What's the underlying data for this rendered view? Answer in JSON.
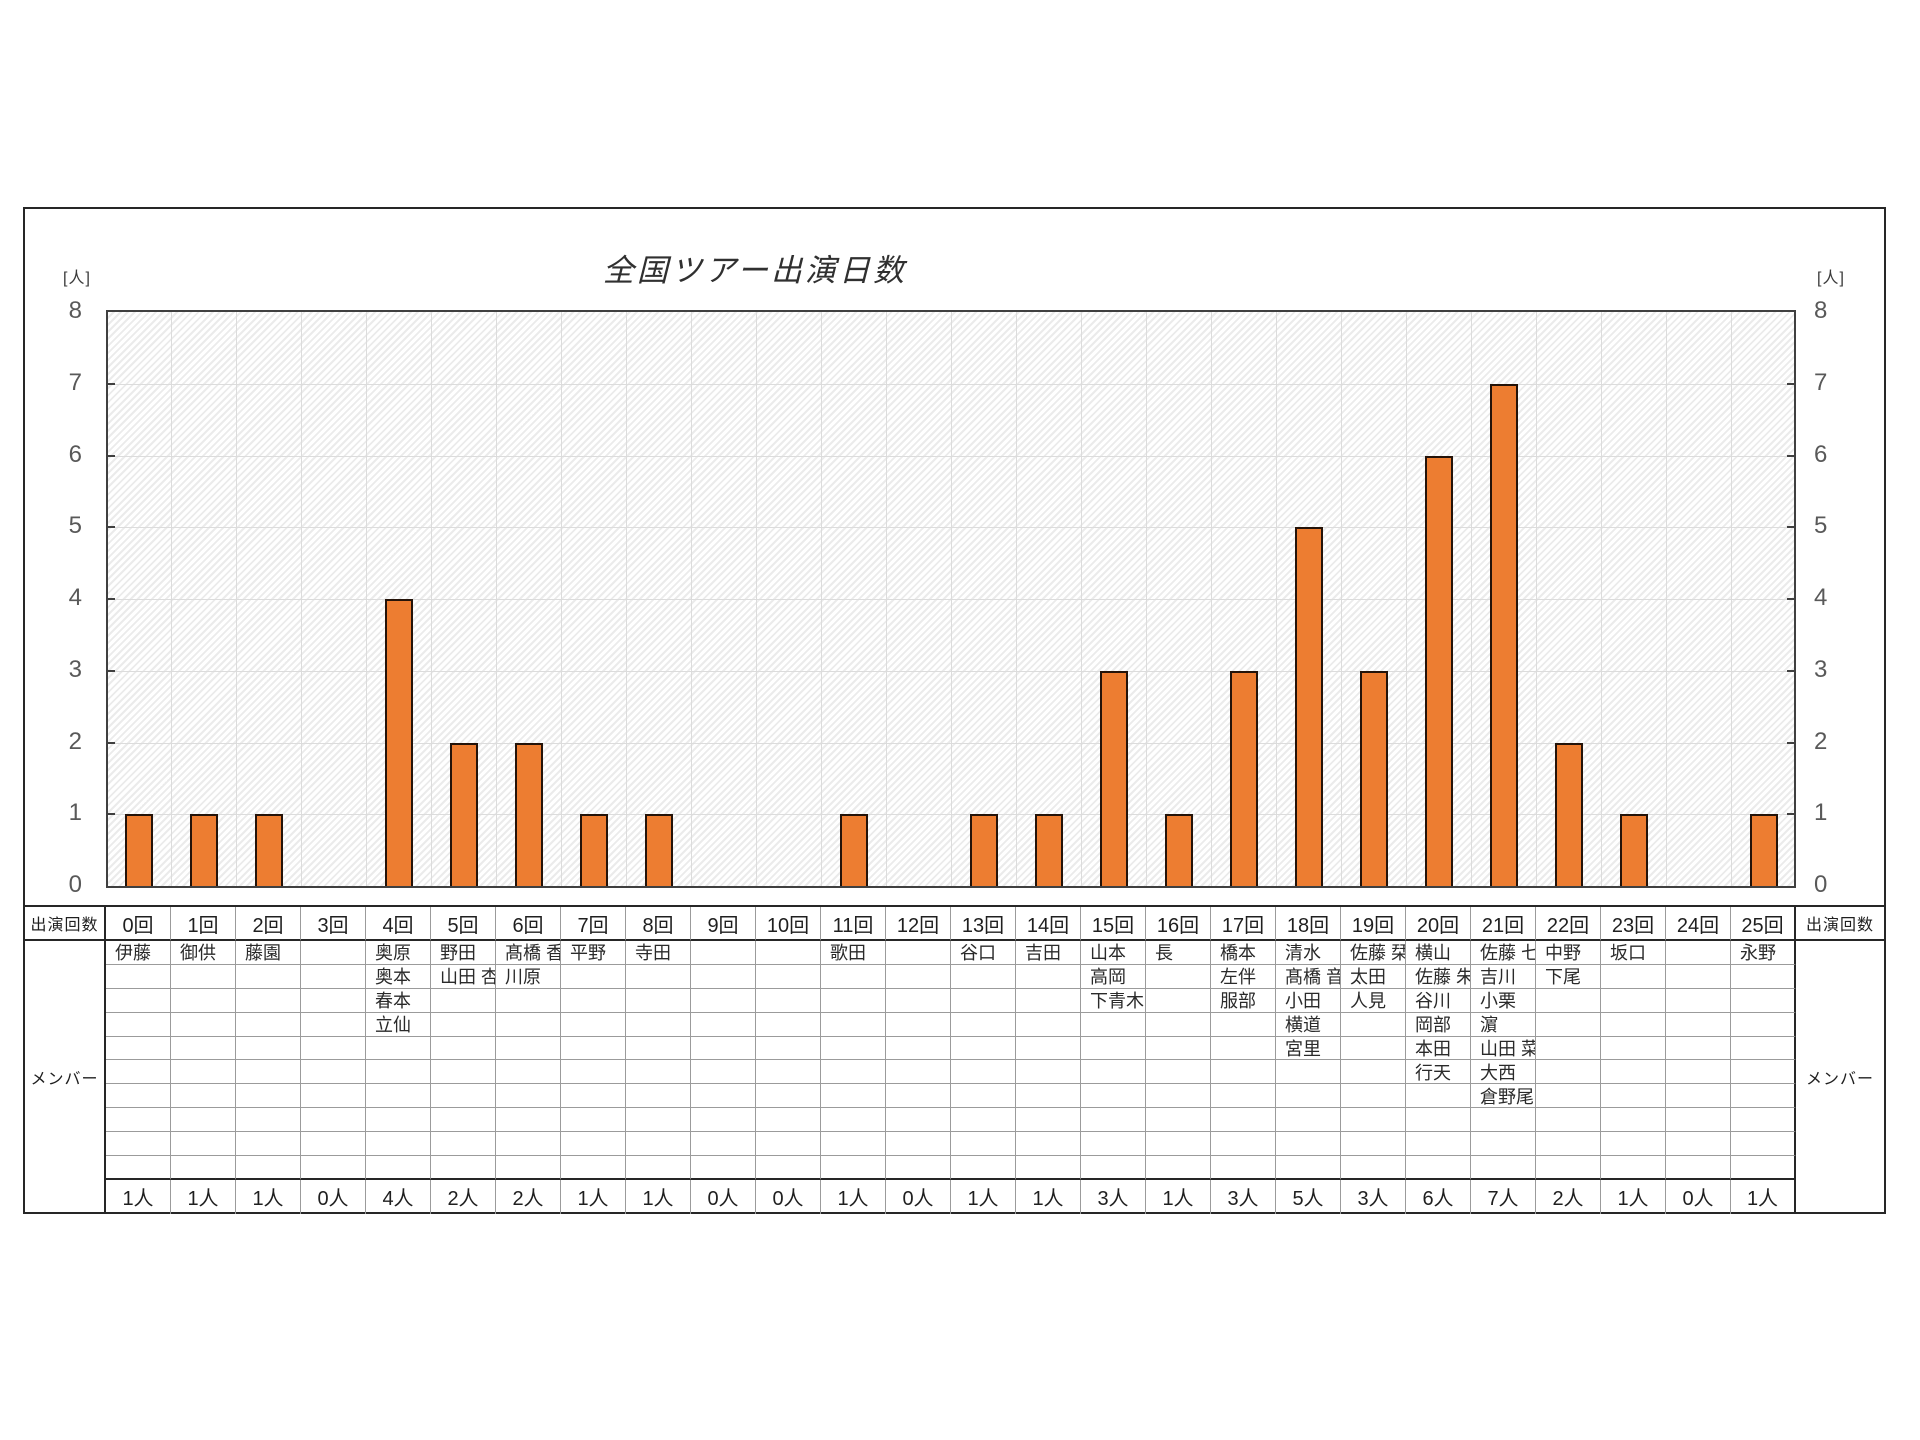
{
  "title": "全国ツアー出演日数",
  "y_axis": {
    "unit_label": "[人]",
    "ticks": [
      0,
      1,
      2,
      3,
      4,
      5,
      6,
      7,
      8
    ]
  },
  "chart_data": {
    "type": "bar",
    "title": "全国ツアー出演日数",
    "categories": [
      "0回",
      "1回",
      "2回",
      "3回",
      "4回",
      "5回",
      "6回",
      "7回",
      "8回",
      "9回",
      "10回",
      "11回",
      "12回",
      "13回",
      "14回",
      "15回",
      "16回",
      "17回",
      "18回",
      "19回",
      "20回",
      "21回",
      "22回",
      "23回",
      "24回",
      "25回"
    ],
    "values": [
      1,
      1,
      1,
      0,
      4,
      2,
      2,
      1,
      1,
      0,
      0,
      1,
      0,
      1,
      1,
      3,
      1,
      3,
      5,
      3,
      6,
      7,
      2,
      1,
      0,
      1
    ],
    "xlabel": "出演回数",
    "ylabel": "[人]",
    "ylim": [
      0,
      8
    ],
    "grid": true,
    "legend": "none",
    "bar_color": "#ED7D31",
    "bar_border_color": "#241309"
  },
  "table": {
    "header_label": "出演回数",
    "member_label": "メンバー",
    "member_rows": 10,
    "columns": [
      {
        "label": "0回",
        "members": [
          "伊藤"
        ],
        "total": "1人"
      },
      {
        "label": "1回",
        "members": [
          "御供"
        ],
        "total": "1人"
      },
      {
        "label": "2回",
        "members": [
          "藤園"
        ],
        "total": "1人"
      },
      {
        "label": "3回",
        "members": [],
        "total": "0人"
      },
      {
        "label": "4回",
        "members": [
          "奥原",
          "奥本",
          "春本",
          "立仙"
        ],
        "total": "4人"
      },
      {
        "label": "5回",
        "members": [
          "野田",
          "山田 杏"
        ],
        "total": "2人"
      },
      {
        "label": "6回",
        "members": [
          "髙橋 香",
          "川原"
        ],
        "total": "2人"
      },
      {
        "label": "7回",
        "members": [
          "平野"
        ],
        "total": "1人"
      },
      {
        "label": "8回",
        "members": [
          "寺田"
        ],
        "total": "1人"
      },
      {
        "label": "9回",
        "members": [],
        "total": "0人"
      },
      {
        "label": "10回",
        "members": [],
        "total": "0人"
      },
      {
        "label": "11回",
        "members": [
          "歌田"
        ],
        "total": "1人"
      },
      {
        "label": "12回",
        "members": [],
        "total": "0人"
      },
      {
        "label": "13回",
        "members": [
          "谷口"
        ],
        "total": "1人"
      },
      {
        "label": "14回",
        "members": [
          "吉田"
        ],
        "total": "1人"
      },
      {
        "label": "15回",
        "members": [
          "山本",
          "高岡",
          "下青木"
        ],
        "total": "3人"
      },
      {
        "label": "16回",
        "members": [
          "長"
        ],
        "total": "1人"
      },
      {
        "label": "17回",
        "members": [
          "橋本",
          "左伴",
          "服部"
        ],
        "total": "3人"
      },
      {
        "label": "18回",
        "members": [
          "清水",
          "髙橋 音",
          "小田",
          "横道",
          "宮里"
        ],
        "total": "5人"
      },
      {
        "label": "19回",
        "members": [
          "佐藤 栞",
          "太田",
          "人見"
        ],
        "total": "3人"
      },
      {
        "label": "20回",
        "members": [
          "横山",
          "佐藤 朱",
          "谷川",
          "岡部",
          "本田",
          "行天"
        ],
        "total": "6人"
      },
      {
        "label": "21回",
        "members": [
          "佐藤 七",
          "吉川",
          "小栗",
          "濵",
          "山田 菜",
          "大西",
          "倉野尾"
        ],
        "total": "7人"
      },
      {
        "label": "22回",
        "members": [
          "中野",
          "下尾"
        ],
        "total": "2人"
      },
      {
        "label": "23回",
        "members": [
          "坂口"
        ],
        "total": "1人"
      },
      {
        "label": "24回",
        "members": [],
        "total": "0人"
      },
      {
        "label": "25回",
        "members": [
          "永野"
        ],
        "total": "1人"
      }
    ]
  }
}
